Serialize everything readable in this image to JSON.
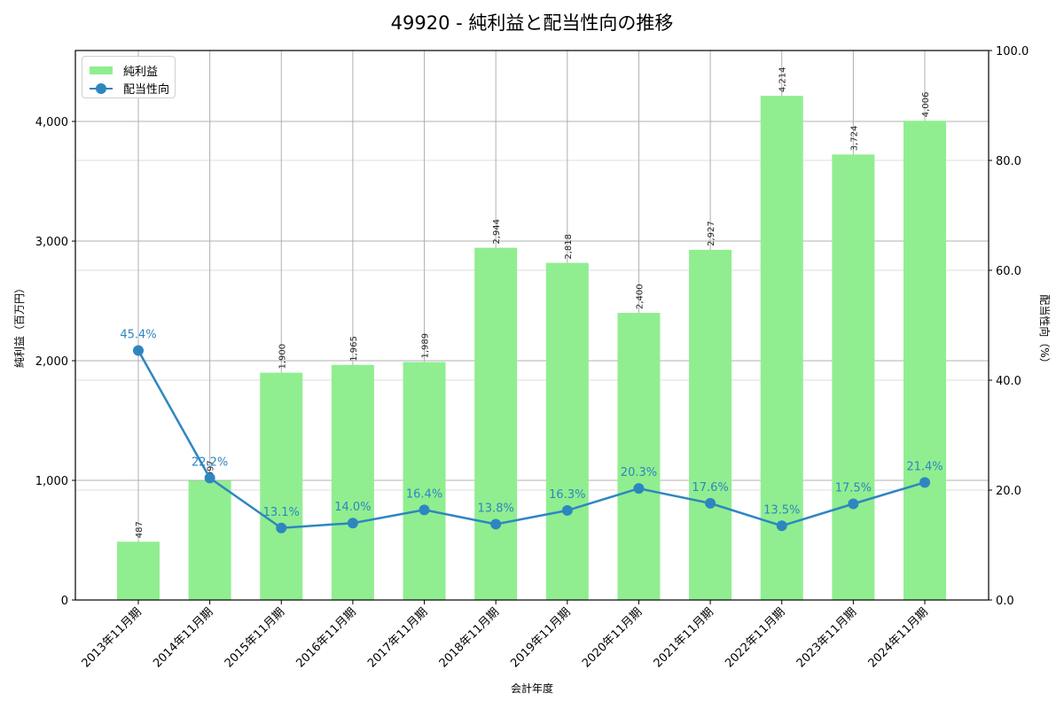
{
  "title": "49920 - 純利益と配当性向の推移",
  "legend": {
    "bar_label": "純利益",
    "line_label": "配当性向"
  },
  "axes": {
    "xlabel": "会計年度",
    "ylabel_left": "純利益（百万円）",
    "ylabel_right": "配当性向（%）",
    "left_ticks": [
      "0",
      "1,000",
      "2,000",
      "3,000",
      "4,000"
    ],
    "right_ticks": [
      "0.0",
      "20.0",
      "40.0",
      "60.0",
      "80.0",
      "100.0"
    ]
  },
  "colors": {
    "bar": "#90ee90",
    "line": "#2e86c1",
    "grid": "#b0b0b0"
  },
  "chart_data": {
    "type": "bar+line",
    "title": "49920 - 純利益と配当性向の推移",
    "xlabel": "会計年度",
    "categories": [
      "2013年11月期",
      "2014年11月期",
      "2015年11月期",
      "2016年11月期",
      "2017年11月期",
      "2018年11月期",
      "2019年11月期",
      "2020年11月期",
      "2021年11月期",
      "2022年11月期",
      "2023年11月期",
      "2024年11月期"
    ],
    "series": [
      {
        "name": "純利益",
        "type": "bar",
        "axis": "left",
        "ylabel": "純利益（百万円）",
        "values": [
          487,
          997,
          1900,
          1965,
          1989,
          2944,
          2818,
          2400,
          2927,
          4214,
          3724,
          4006
        ],
        "labels": [
          "487",
          "997",
          "1,900",
          "1,965",
          "1,989",
          "2,944",
          "2,818",
          "2,400",
          "2,927",
          "4,214",
          "3,724",
          "4,006"
        ]
      },
      {
        "name": "配当性向",
        "type": "line",
        "axis": "right",
        "ylabel": "配当性向（%）",
        "values": [
          45.4,
          22.2,
          13.1,
          14.0,
          16.4,
          13.8,
          16.3,
          20.3,
          17.6,
          13.5,
          17.5,
          21.4
        ],
        "labels": [
          "45.4%",
          "22.2%",
          "13.1%",
          "14.0%",
          "16.4%",
          "13.8%",
          "16.3%",
          "20.3%",
          "17.6%",
          "13.5%",
          "17.5%",
          "21.4%"
        ]
      }
    ],
    "ylim_left": [
      0,
      4593
    ],
    "ylim_right": [
      0,
      100
    ],
    "grid": true,
    "legend_position": "upper left"
  }
}
